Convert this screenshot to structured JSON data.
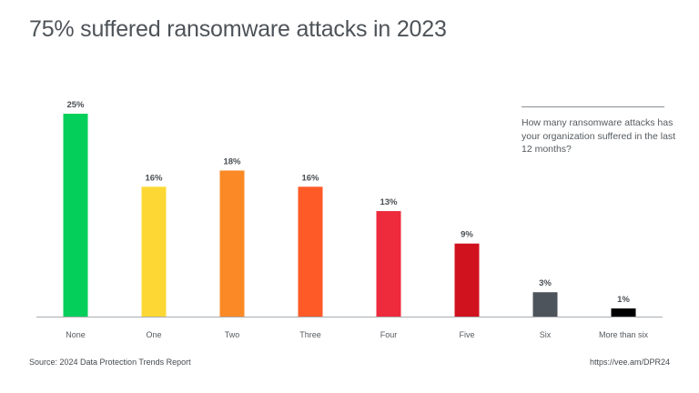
{
  "chart_data": {
    "type": "bar",
    "title": "75% suffered ransomware attacks in 2023",
    "annotation": "How many ransomware attacks has your organization suffered in the last 12 months?",
    "categories": [
      "None",
      "One",
      "Two",
      "Three",
      "Four",
      "Five",
      "Six",
      "More than six"
    ],
    "values": [
      25,
      16,
      18,
      16,
      13,
      9,
      3,
      1
    ],
    "value_labels": [
      "25%",
      "16%",
      "18%",
      "16%",
      "13%",
      "9%",
      "3%",
      "1%"
    ],
    "colors": [
      "#05cf5b",
      "#fdd835",
      "#fb8a26",
      "#fe5a28",
      "#ee2a3d",
      "#d0121f",
      "#4d545b",
      "#000000"
    ],
    "ylim": [
      0,
      25
    ],
    "grid": false,
    "xlabel": "",
    "ylabel": ""
  },
  "footer": {
    "source": "Source: 2024 Data Protection Trends Report",
    "url": "https://vee.am/DPR24"
  }
}
